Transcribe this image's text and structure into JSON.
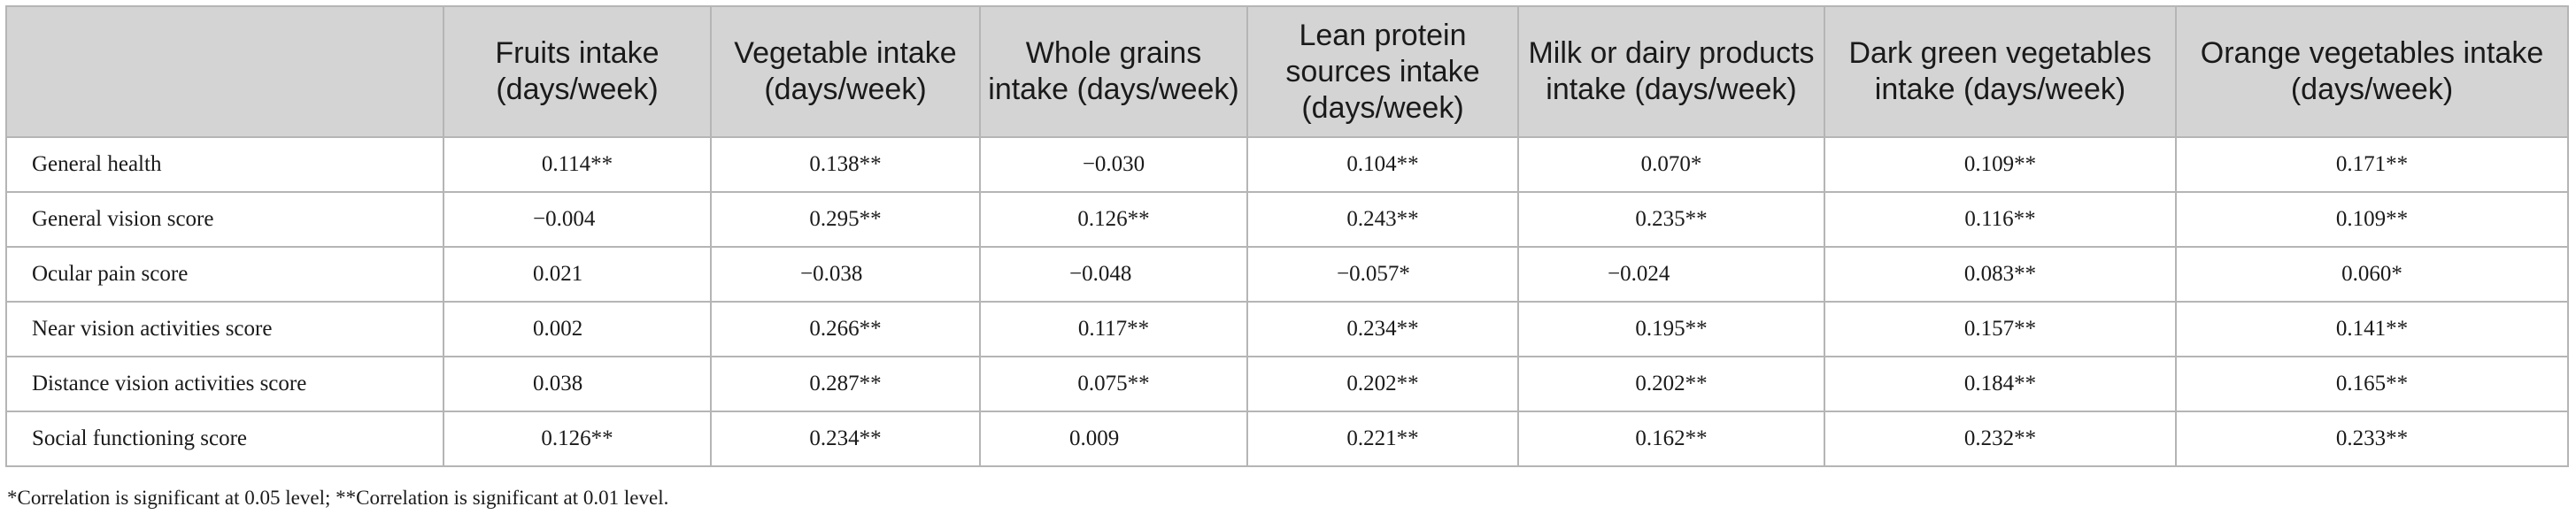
{
  "table": {
    "columns": [
      "",
      "Fruits intake (days/week)",
      "Vegetable intake (days/week)",
      "Whole grains intake (days/week)",
      "Lean protein sources intake (days/week)",
      "Milk or dairy products intake (days/week)",
      "Dark green vegetables intake (days/week)",
      "Orange vegetables intake (days/week)"
    ],
    "rows": [
      {
        "label": "General health",
        "values": [
          "0.114**",
          "0.138**",
          "−0.030",
          "0.104**",
          "0.070*",
          "0.109**",
          "0.171**"
        ]
      },
      {
        "label": "General vision score",
        "values": [
          "−0.004",
          "0.295**",
          "0.126**",
          "0.243**",
          "0.235**",
          "0.116**",
          "0.109**"
        ]
      },
      {
        "label": "Ocular pain score",
        "values": [
          "0.021",
          "−0.038",
          "−0.048",
          "−0.057*",
          "−0.024",
          "0.083**",
          "0.060*"
        ]
      },
      {
        "label": "Near vision activities score",
        "values": [
          "0.002",
          "0.266**",
          "0.117**",
          "0.234**",
          "0.195**",
          "0.157**",
          "0.141**"
        ]
      },
      {
        "label": "Distance vision activities score",
        "values": [
          "0.038",
          "0.287**",
          "0.075**",
          "0.202**",
          "0.202**",
          "0.184**",
          "0.165**"
        ]
      },
      {
        "label": "Social functioning score",
        "values": [
          "0.126**",
          "0.234**",
          "0.009",
          "0.221**",
          "0.162**",
          "0.232**",
          "0.233**"
        ]
      }
    ]
  },
  "footnote": "*Correlation is significant at 0.05 level; **Correlation is significant at 0.01 level."
}
